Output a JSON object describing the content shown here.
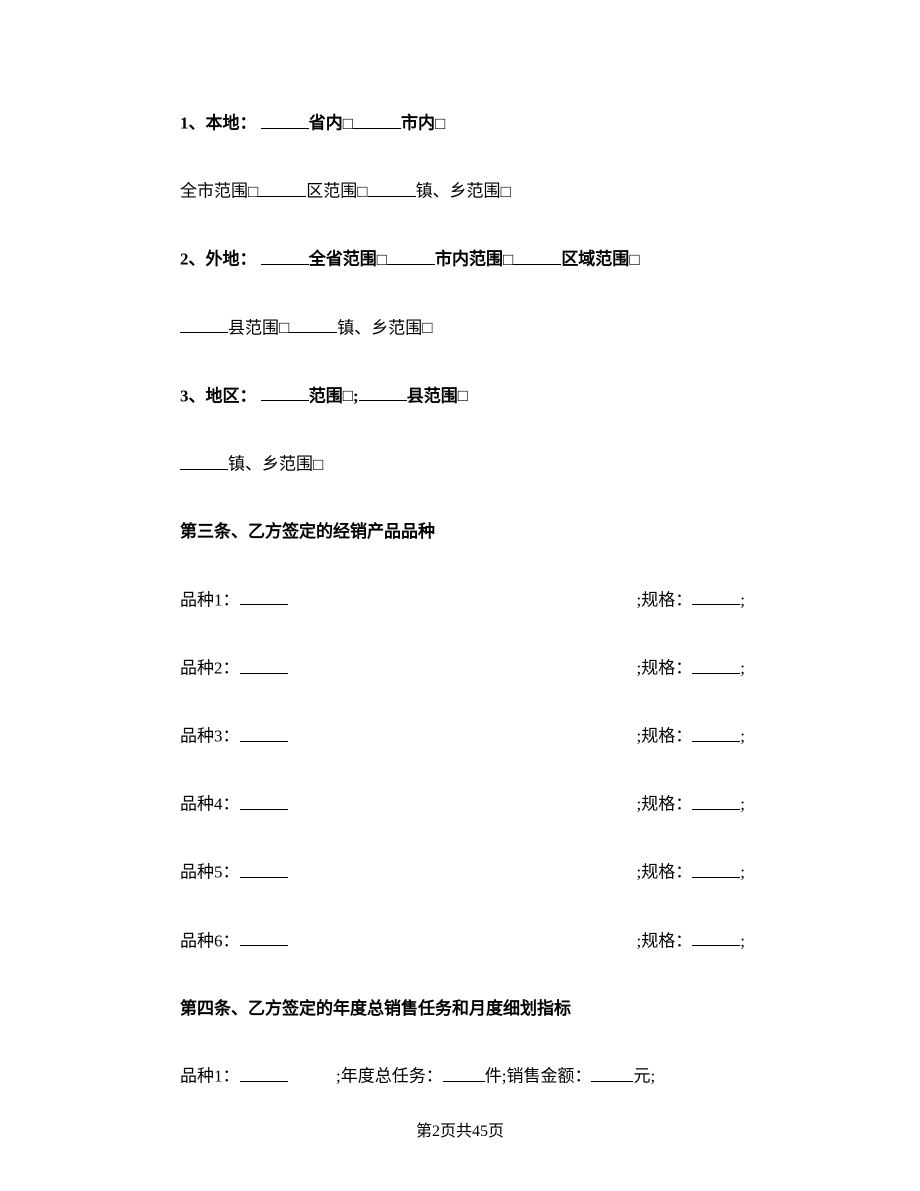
{
  "section1": {
    "num": "1、",
    "label": "本地：",
    "opt1": "省内",
    "opt2": "市内",
    "line2_a": "全市范围",
    "line2_b": "区范围",
    "line2_c": "镇、乡范围"
  },
  "section2": {
    "num": "2、",
    "label": "外地：",
    "opt1": "全省范围",
    "opt2": "市内范围",
    "opt3": "区域范围",
    "line2_a": "县范围",
    "line2_b": "镇、乡范围"
  },
  "section3": {
    "num": "3、",
    "label": "地区：",
    "opt1": "范围",
    "opt2": "县范围",
    "line2_a": "镇、乡范围"
  },
  "article3": {
    "title": "第三条、乙方签定的经销产品品种",
    "variety_label": "品种",
    "spec_label": ";规格：",
    "count": 6
  },
  "article4": {
    "title": "第四条、乙方签定的年度总销售任务和月度细划指标",
    "variety_label": "品种1：",
    "annual_label": ";年度总任务：",
    "unit1": "件;",
    "sales_label": "销售金额：",
    "unit2": "元;"
  },
  "footer": "第2页共45页",
  "checkbox_glyph": "□",
  "semicolon": ";",
  "colon_blank": "："
}
